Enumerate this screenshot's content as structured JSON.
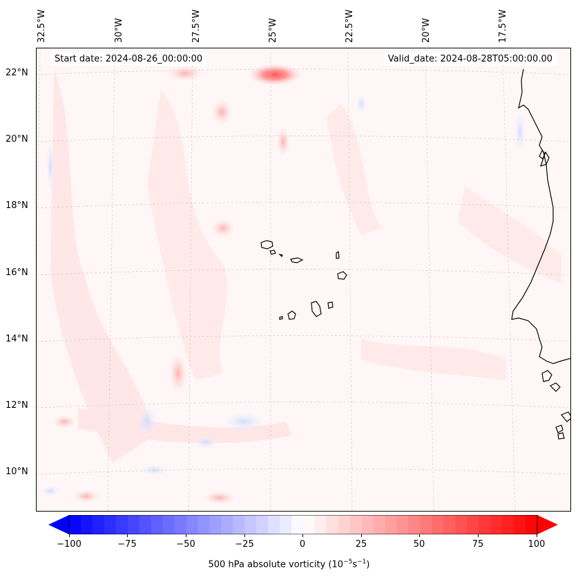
{
  "map": {
    "header": {
      "start_date": "Start date: 2024-08-26_00:00:00",
      "valid_date": "Valid_date: 2024-08-28T05:00:00.00"
    },
    "longitude_labels": [
      "32.5°W",
      "30°W",
      "27.5°W",
      "25°W",
      "22.5°W",
      "20°W",
      "17.5°W"
    ],
    "latitude_labels": [
      "22°N",
      "20°N",
      "18°N",
      "16°N",
      "14°N",
      "12°N",
      "10°N"
    ],
    "features": {
      "islands": "Cabo Verde",
      "coastline": "West Africa"
    }
  },
  "colorbar": {
    "label_prefix": "500 hPa absolute vorticity (10",
    "label_exp1": "−5",
    "label_mid": "s",
    "label_exp2": "−1",
    "label_suffix": ")",
    "ticks": [
      "−100",
      "−75",
      "−50",
      "−25",
      "0",
      "25",
      "50",
      "75",
      "100"
    ],
    "min_color": "#0000ff",
    "mid_color": "#ffffff",
    "max_color": "#ff0000",
    "range": [
      -100,
      100
    ]
  }
}
